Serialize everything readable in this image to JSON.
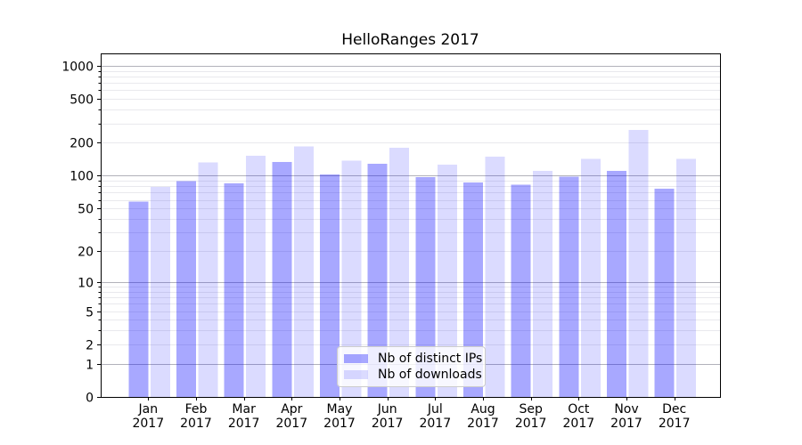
{
  "chart_data": {
    "type": "bar",
    "title": "HelloRanges 2017",
    "categories": [
      "Jan",
      "Feb",
      "Mar",
      "Apr",
      "May",
      "Jun",
      "Jul",
      "Aug",
      "Sep",
      "Oct",
      "Nov",
      "Dec"
    ],
    "x_year": "2017",
    "series": [
      {
        "name": "Nb of distinct IPs",
        "color": "#0000ff",
        "alpha": 0.34,
        "values": [
          58,
          89,
          85,
          133,
          103,
          129,
          97,
          87,
          83,
          98,
          111,
          76
        ]
      },
      {
        "name": "Nb of downloads",
        "color": "#0000ff",
        "alpha": 0.14,
        "values": [
          79,
          132,
          152,
          186,
          138,
          180,
          126,
          150,
          111,
          142,
          262,
          142
        ]
      }
    ],
    "y_axis": {
      "scale": "log1p",
      "ticks": [
        0,
        1,
        2,
        5,
        10,
        20,
        50,
        100,
        200,
        500,
        1000
      ],
      "ylim": [
        0,
        1000
      ]
    },
    "grid": {
      "enabled": true,
      "major_ticks": [
        1,
        10,
        100,
        1000
      ],
      "major_color": "#b2b2ba",
      "minor_color": "#e9e9ed"
    },
    "legend": {
      "position": "lower center"
    },
    "axis_color": "#000000",
    "text_color": "#000000",
    "background": "#ffffff"
  }
}
